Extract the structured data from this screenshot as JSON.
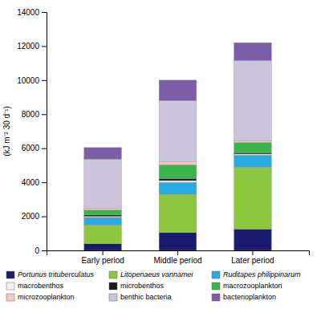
{
  "chart_data": {
    "type": "bar",
    "stacked": true,
    "grid": false,
    "legend": "bottom",
    "ylabel": "(kJ m⁻² 30 d⁻¹)",
    "categories": [
      "Early period",
      "Middle period",
      "Later period"
    ],
    "series": [
      {
        "name": "Portunus trituberculatus",
        "color": "#1a1a6e",
        "values": [
          400,
          1050,
          1250
        ]
      },
      {
        "name": "Litopenaeus vannamei",
        "color": "#8dc63f",
        "values": [
          1100,
          2250,
          3650
        ]
      },
      {
        "name": "Ruditapes philippinarum",
        "color": "#29abe2",
        "values": [
          450,
          700,
          700
        ]
      },
      {
        "name": "macrobenthos",
        "color": "#f2f0f0",
        "values": [
          50,
          100,
          60
        ]
      },
      {
        "name": "microbenthos",
        "color": "#1a1a1a",
        "values": [
          80,
          130,
          80
        ]
      },
      {
        "name": "macrozooplankton",
        "color": "#39b54a",
        "values": [
          300,
          800,
          600
        ]
      },
      {
        "name": "microzooplankton",
        "color": "#f5c9c0",
        "values": [
          80,
          170,
          110
        ]
      },
      {
        "name": "benthic bacteria",
        "color": "#cdc5de",
        "values": [
          2900,
          3600,
          4700
        ]
      },
      {
        "name": "bacterioplankton",
        "color": "#7b5ea7",
        "values": [
          680,
          1200,
          1050
        ]
      }
    ],
    "ylim": [
      0,
      14000
    ],
    "yticks": [
      0,
      2000,
      4000,
      6000,
      8000,
      10000,
      12000,
      14000
    ]
  }
}
